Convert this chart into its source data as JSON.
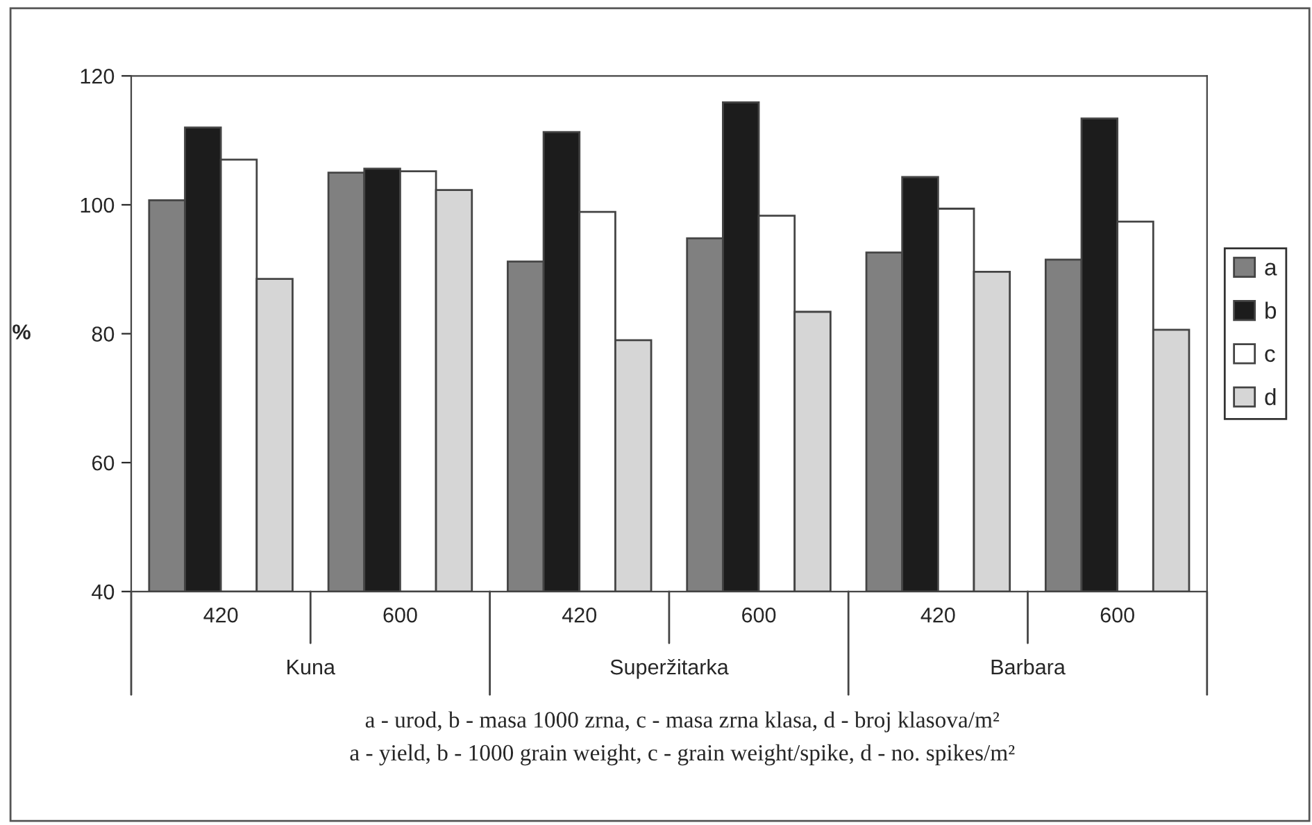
{
  "chart_data": {
    "type": "bar",
    "ylabel": "%",
    "categories": [
      "420",
      "600",
      "420",
      "600",
      "420",
      "600"
    ],
    "series": [
      {
        "name": "a",
        "color": "#808080",
        "values": [
          100.7,
          105.0,
          91.2,
          94.8,
          92.6,
          91.5
        ]
      },
      {
        "name": "b",
        "color": "#1c1c1c",
        "values": [
          112.0,
          105.6,
          111.3,
          115.9,
          104.3,
          113.4
        ]
      },
      {
        "name": "c",
        "color": "#ffffff",
        "values": [
          107.0,
          105.2,
          98.9,
          98.3,
          99.4,
          97.4
        ]
      },
      {
        "name": "d",
        "color": "#d6d6d6",
        "values": [
          88.5,
          102.3,
          79.0,
          83.4,
          89.6,
          80.6
        ]
      }
    ],
    "ylim": [
      40,
      120
    ],
    "yticks": [
      40,
      60,
      80,
      100,
      120
    ],
    "grid": false,
    "legend": "right",
    "annotations": [
      "Kuna",
      "Superžitarka",
      "Barbara",
      "a - urod, b - masa 1000 zrna, c - masa zrna klasa, d - broj klasova/m²",
      "a - yield, b - 1000 grain weight, c - grain weight/spike, d - no. spikes/m²"
    ]
  }
}
